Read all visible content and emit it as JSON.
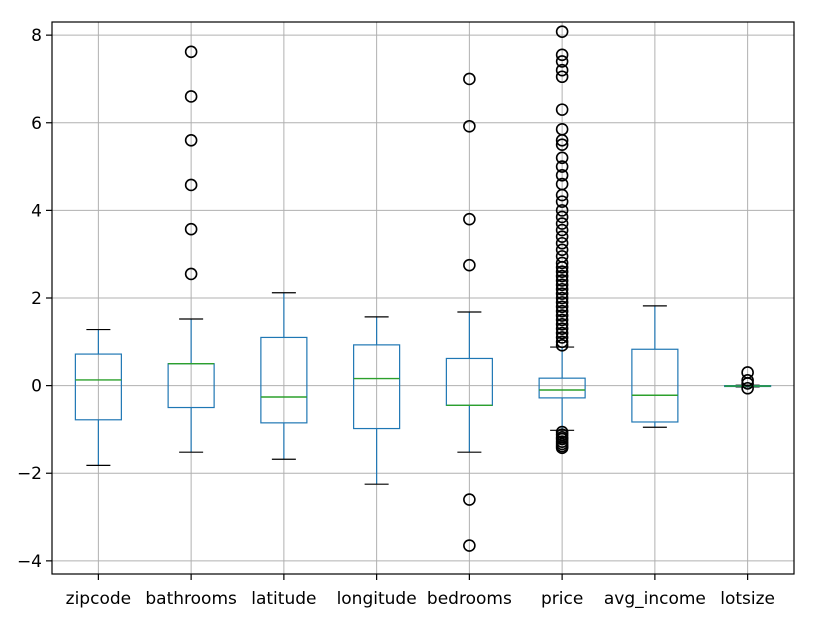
{
  "chart_data": {
    "type": "box",
    "grid": true,
    "ylim": [
      -4.3,
      8.3
    ],
    "yticks": [
      -4,
      -2,
      0,
      2,
      4,
      6,
      8
    ],
    "ytick_labels": [
      "−4",
      "−2",
      "0",
      "2",
      "4",
      "6",
      "8"
    ],
    "categories": [
      "zipcode",
      "bathrooms",
      "latitude",
      "longitude",
      "bedrooms",
      "price",
      "avg_income",
      "lotsize"
    ],
    "box_color": "#1f77b4",
    "median_color": "#2ca02c",
    "outlier_color": "#000000",
    "boxes": [
      {
        "name": "zipcode",
        "whisker_low": -1.82,
        "q1": -0.78,
        "median": 0.13,
        "q3": 0.72,
        "whisker_high": 1.28,
        "outliers": []
      },
      {
        "name": "bathrooms",
        "whisker_low": -1.52,
        "q1": -0.5,
        "median": 0.5,
        "q3": 0.5,
        "whisker_high": 1.52,
        "outliers": [
          2.55,
          3.57,
          4.58,
          5.6,
          6.6,
          7.62
        ]
      },
      {
        "name": "latitude",
        "whisker_low": -1.68,
        "q1": -0.85,
        "median": -0.26,
        "q3": 1.1,
        "whisker_high": 2.12,
        "outliers": []
      },
      {
        "name": "longitude",
        "whisker_low": -2.25,
        "q1": -0.98,
        "median": 0.16,
        "q3": 0.93,
        "whisker_high": 1.57,
        "outliers": []
      },
      {
        "name": "bedrooms",
        "whisker_low": -1.52,
        "q1": -0.45,
        "median": -0.45,
        "q3": 0.62,
        "whisker_high": 1.68,
        "outliers": [
          -3.65,
          -2.6,
          2.75,
          3.8,
          5.92,
          7.0
        ]
      },
      {
        "name": "price",
        "whisker_low": -1.02,
        "q1": -0.28,
        "median": -0.1,
        "q3": 0.17,
        "whisker_high": 0.88,
        "outliers": [
          -1.42,
          -1.38,
          -1.33,
          -1.28,
          -1.22,
          -1.18,
          -1.12,
          -1.06,
          0.92,
          1.0,
          1.1,
          1.2,
          1.3,
          1.4,
          1.5,
          1.6,
          1.7,
          1.8,
          1.9,
          2.0,
          2.1,
          2.2,
          2.3,
          2.4,
          2.5,
          2.6,
          2.7,
          2.8,
          2.95,
          3.1,
          3.25,
          3.4,
          3.55,
          3.7,
          3.85,
          4.0,
          4.2,
          4.35,
          4.6,
          4.8,
          5.0,
          5.2,
          5.5,
          5.6,
          5.85,
          6.3,
          7.05,
          7.2,
          7.4,
          7.55,
          8.08
        ]
      },
      {
        "name": "avg_income",
        "whisker_low": -0.95,
        "q1": -0.83,
        "median": -0.22,
        "q3": 0.83,
        "whisker_high": 1.82,
        "outliers": []
      },
      {
        "name": "lotsize",
        "whisker_low": -0.03,
        "q1": -0.02,
        "median": -0.01,
        "q3": 0.0,
        "whisker_high": 0.01,
        "outliers": [
          -0.06,
          0.05,
          0.12,
          0.3
        ]
      }
    ]
  }
}
